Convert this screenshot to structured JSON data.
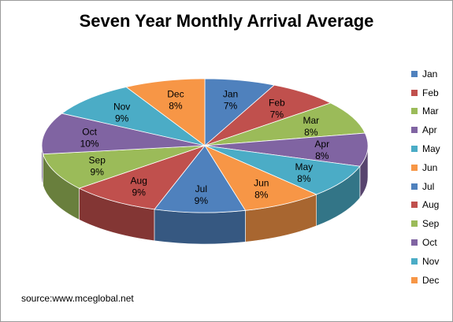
{
  "chart_data": {
    "type": "pie",
    "title": "Seven Year Monthly Arrival Average",
    "categories": [
      "Jan",
      "Feb",
      "Mar",
      "Apr",
      "May",
      "Jun",
      "Jul",
      "Aug",
      "Sep",
      "Oct",
      "Nov",
      "Dec"
    ],
    "values": [
      7,
      7,
      8,
      8,
      8,
      8,
      9,
      9,
      9,
      10,
      9,
      8
    ],
    "data_labels": [
      "7%",
      "7%",
      "8%",
      "8%",
      "8%",
      "8%",
      "9%",
      "9%",
      "9%",
      "10%",
      "9%",
      "8%"
    ],
    "colors": [
      "#4F81BD",
      "#C0504D",
      "#9BBB59",
      "#8064A2",
      "#4BACC6",
      "#F79646",
      "#4F81BD",
      "#C0504D",
      "#9BBB59",
      "#8064A2",
      "#4BACC6",
      "#F79646"
    ],
    "style": "3d-pie",
    "legend_position": "right"
  },
  "source": "source:www.mceglobal.net"
}
